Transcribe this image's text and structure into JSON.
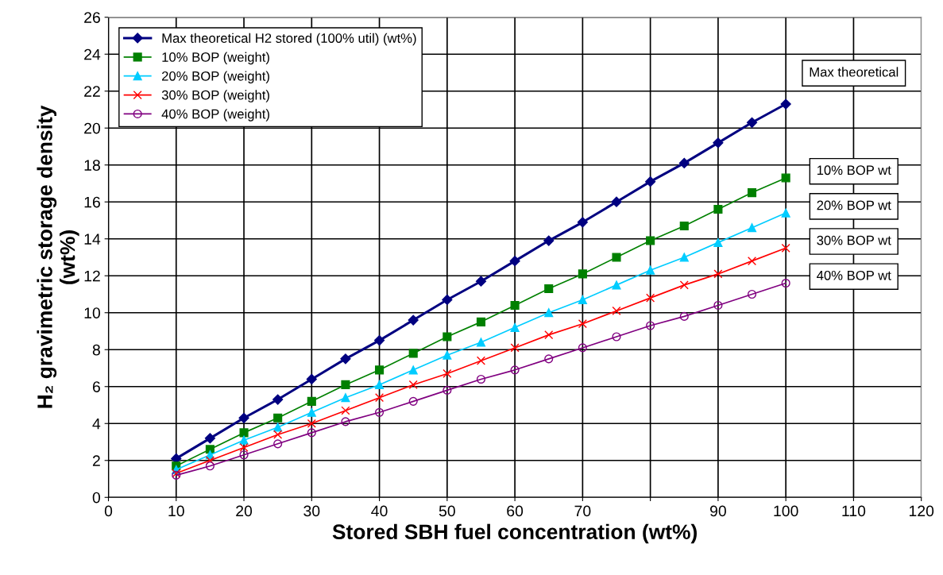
{
  "chart_data": {
    "type": "line",
    "xlabel": "Stored SBH fuel concentration (wt%)",
    "ylabel": "H₂ gravimetric storage density\n(wt%)",
    "x": [
      10,
      15,
      20,
      25,
      30,
      35,
      40,
      45,
      50,
      55,
      60,
      65,
      70,
      75,
      80,
      85,
      90,
      95,
      100
    ],
    "series": [
      {
        "name": "Max theoretical H2 stored (100% util) (wt%)",
        "color": "#000080",
        "marker": "diamond",
        "values": [
          2.1,
          3.2,
          4.3,
          5.3,
          6.4,
          7.5,
          8.5,
          9.6,
          10.7,
          11.7,
          12.8,
          13.9,
          14.9,
          16.0,
          17.1,
          18.1,
          19.2,
          20.3,
          21.3
        ]
      },
      {
        "name": "10% BOP (weight)",
        "color": "#008000",
        "marker": "square",
        "values": [
          1.7,
          2.6,
          3.5,
          4.3,
          5.2,
          6.1,
          6.9,
          7.8,
          8.7,
          9.5,
          10.4,
          11.3,
          12.1,
          13.0,
          13.9,
          14.7,
          15.6,
          16.5,
          17.3
        ]
      },
      {
        "name": "20% BOP (weight)",
        "color": "#00ccff",
        "marker": "triangle",
        "values": [
          1.5,
          2.3,
          3.1,
          3.8,
          4.6,
          5.4,
          6.1,
          6.9,
          7.7,
          8.4,
          9.2,
          10.0,
          10.7,
          11.5,
          12.3,
          13.0,
          13.8,
          14.6,
          15.4
        ]
      },
      {
        "name": "30% BOP (weight)",
        "color": "#ff0000",
        "marker": "cross",
        "values": [
          1.3,
          2.0,
          2.7,
          3.4,
          4.0,
          4.7,
          5.4,
          6.1,
          6.7,
          7.4,
          8.1,
          8.8,
          9.4,
          10.1,
          10.8,
          11.5,
          12.1,
          12.8,
          13.5
        ]
      },
      {
        "name": "40% BOP (weight)",
        "color": "#800080",
        "marker": "circle",
        "values": [
          1.2,
          1.7,
          2.3,
          2.9,
          3.5,
          4.1,
          4.6,
          5.2,
          5.8,
          6.4,
          6.9,
          7.5,
          8.1,
          8.7,
          9.3,
          9.8,
          10.4,
          11.0,
          11.6
        ]
      }
    ],
    "annotations": [
      "Max theoretical",
      "10% BOP wt",
      "20% BOP wt",
      "30% BOP wt",
      "40% BOP wt"
    ],
    "xlim": [
      0,
      120
    ],
    "xticks": [
      0,
      10,
      20,
      30,
      40,
      50,
      60,
      70,
      {
        "value": 80,
        "label": null
      },
      90,
      100,
      110,
      120
    ],
    "ylim": [
      0,
      26
    ],
    "yticks": [
      0,
      2,
      4,
      6,
      8,
      10,
      12,
      14,
      16,
      18,
      20,
      22,
      24,
      26
    ],
    "grid": true,
    "legend": "top left",
    "line_style": "solid"
  }
}
